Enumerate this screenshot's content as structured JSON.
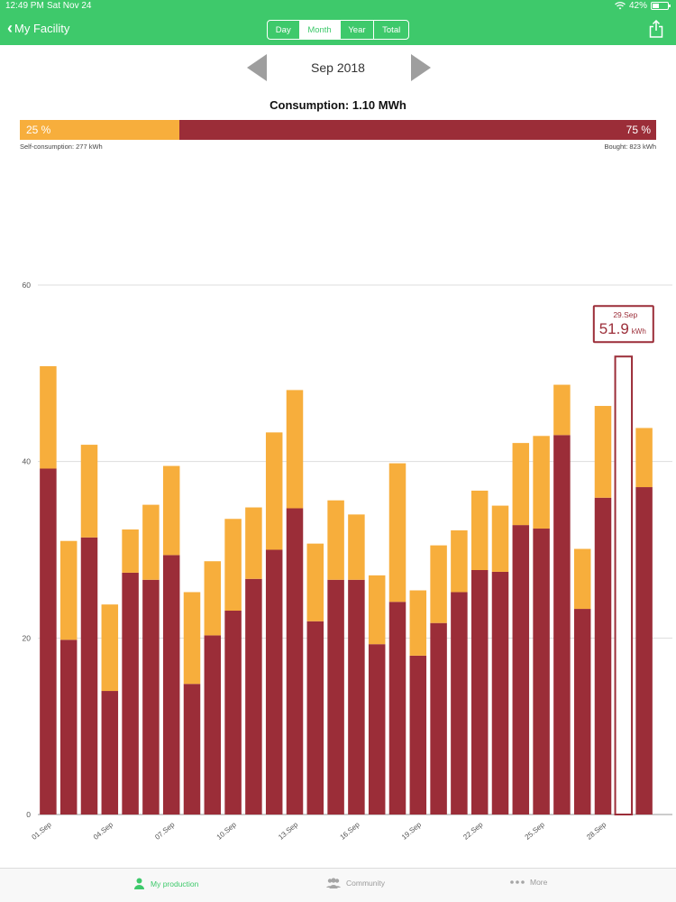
{
  "status": {
    "time": "12:49 PM",
    "date": "Sat Nov 24",
    "battery": "42%",
    "battery_level": 0.42
  },
  "nav": {
    "back_label": "My Facility",
    "tabs": [
      {
        "label": "Day",
        "active": false
      },
      {
        "label": "Month",
        "active": true
      },
      {
        "label": "Year",
        "active": false
      },
      {
        "label": "Total",
        "active": false
      }
    ]
  },
  "period": {
    "label": "Sep 2018"
  },
  "summary": {
    "consumption_label": "Consumption: 1.10 MWh",
    "self_percent_label": "25 %",
    "bought_percent_label": "75 %",
    "self_fraction": 0.25,
    "self_label": "Self-consumption: 277 kWh",
    "bought_label": "Bought: 823 kWh"
  },
  "colors": {
    "green": "#3ec96b",
    "self": "#f7ae3c",
    "bought": "#9b2d38",
    "grid": "#dddddd",
    "axis": "#555555"
  },
  "chart_data": {
    "type": "bar",
    "stacked": true,
    "categories": [
      "01.Sep",
      "02.Sep",
      "03.Sep",
      "04.Sep",
      "05.Sep",
      "06.Sep",
      "07.Sep",
      "08.Sep",
      "09.Sep",
      "10.Sep",
      "11.Sep",
      "12.Sep",
      "13.Sep",
      "14.Sep",
      "15.Sep",
      "16.Sep",
      "17.Sep",
      "18.Sep",
      "19.Sep",
      "20.Sep",
      "21.Sep",
      "22.Sep",
      "23.Sep",
      "24.Sep",
      "25.Sep",
      "26.Sep",
      "27.Sep",
      "28.Sep",
      "29.Sep",
      "30.Sep"
    ],
    "tick_labels": [
      "01.Sep",
      "",
      "",
      "04.Sep",
      "",
      "",
      "07.Sep",
      "",
      "",
      "10.Sep",
      "",
      "",
      "13.Sep",
      "",
      "",
      "16.Sep",
      "",
      "",
      "19.Sep",
      "",
      "",
      "22.Sep",
      "",
      "",
      "25.Sep",
      "",
      "",
      "28.Sep",
      "",
      ""
    ],
    "series": [
      {
        "values": [
          39.2,
          19.8,
          31.4,
          14.0,
          27.4,
          26.6,
          29.4,
          14.8,
          20.3,
          23.1,
          26.7,
          30.0,
          34.7,
          21.9,
          26.6,
          26.6,
          19.3,
          24.1,
          18.0,
          21.7,
          25.2,
          27.7,
          27.5,
          32.8,
          32.4,
          43.0,
          23.3,
          35.9,
          0,
          37.1
        ]
      },
      {
        "values": [
          11.6,
          11.2,
          10.5,
          9.8,
          4.9,
          8.5,
          10.1,
          10.4,
          8.4,
          10.4,
          8.1,
          13.3,
          13.4,
          8.8,
          9.0,
          7.4,
          7.8,
          15.7,
          7.4,
          8.8,
          7.0,
          9.0,
          7.5,
          9.3,
          10.5,
          5.7,
          6.8,
          10.4,
          0,
          6.7
        ]
      }
    ],
    "selected": {
      "index": 28,
      "date": "29.Sep",
      "value": "51.9",
      "unit": "kWh",
      "value_num": 51.9
    },
    "y_ticks": [
      "0",
      "20",
      "40",
      "60"
    ],
    "ylim": [
      0,
      60
    ],
    "grid": true
  },
  "tabbar": {
    "items": [
      {
        "label": "My production",
        "active": true
      },
      {
        "label": "Community",
        "active": false
      },
      {
        "label": "More",
        "active": false
      }
    ]
  }
}
